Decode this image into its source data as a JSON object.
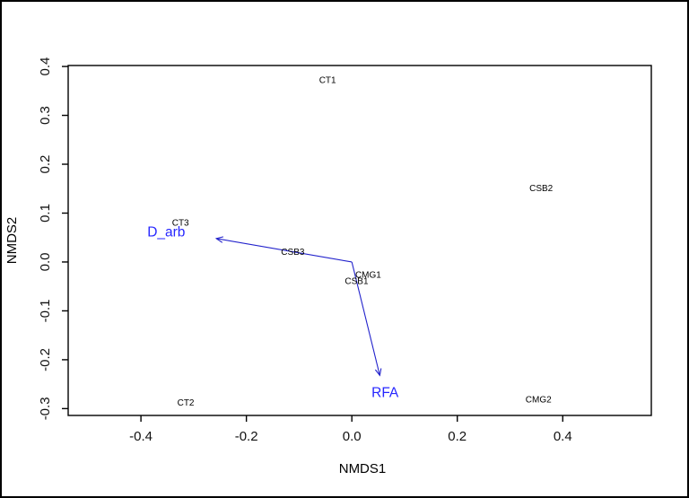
{
  "figure": {
    "background": "#ffffff",
    "frame_color": "#000000"
  },
  "chart_data": {
    "type": "scatter",
    "subtype": "nmds-ordination-text-labels",
    "title": "",
    "xlabel": "NMDS1",
    "ylabel": "NMDS2",
    "xlim": [
      -0.538,
      0.568
    ],
    "ylim": [
      -0.314,
      0.402
    ],
    "x_ticks": [
      -0.4,
      -0.2,
      0.0,
      0.2,
      0.4
    ],
    "y_ticks": [
      -0.3,
      -0.2,
      -0.1,
      0.0,
      0.1,
      0.2,
      0.3,
      0.4
    ],
    "grid": false,
    "legend": "none",
    "sites": [
      {
        "label": "CT1",
        "x": -0.046,
        "y": 0.373
      },
      {
        "label": "CSB2",
        "x": 0.359,
        "y": 0.151
      },
      {
        "label": "CT3",
        "x": -0.325,
        "y": 0.081
      },
      {
        "label": "CSB3",
        "x": -0.112,
        "y": 0.021
      },
      {
        "label": "CMG1",
        "x": 0.031,
        "y": -0.026
      },
      {
        "label": "CSB1",
        "x": 0.009,
        "y": -0.039
      },
      {
        "label": "CT2",
        "x": -0.315,
        "y": -0.287
      },
      {
        "label": "CMG2",
        "x": 0.354,
        "y": -0.281
      }
    ],
    "vectors": [
      {
        "label": "D_arb",
        "origin_x": 0.0,
        "origin_y": 0.0,
        "x": -0.257,
        "y": 0.048,
        "label_x": -0.352,
        "label_y": 0.061
      },
      {
        "label": "RFA",
        "origin_x": 0.0,
        "origin_y": 0.0,
        "x": 0.053,
        "y": -0.232,
        "label_x": 0.063,
        "label_y": -0.267
      }
    ],
    "colors": {
      "site_label": "#000000",
      "vector_arrow": "#2222cc",
      "vector_label": "#2626ff",
      "axis": "#000000",
      "tick_label": "#111111"
    }
  }
}
